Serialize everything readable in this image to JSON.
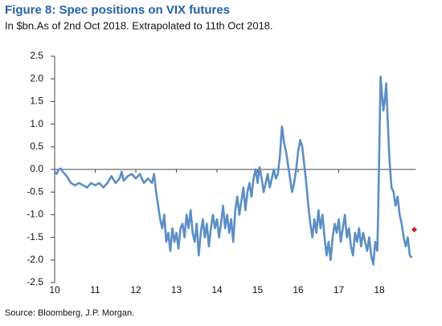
{
  "chart_data": {
    "type": "line",
    "title": "Figure 8: Spec positions on VIX futures",
    "subtitle": "In $bn.As of 2nd Oct 2018. Extrapolated to 11th Oct 2018.",
    "source": "Source:  Bloomberg, J.P. Morgan.",
    "x": [
      10.0,
      10.05,
      10.1,
      10.15,
      10.2,
      10.3,
      10.4,
      10.5,
      10.6,
      10.7,
      10.8,
      10.9,
      11.0,
      11.1,
      11.2,
      11.3,
      11.4,
      11.5,
      11.6,
      11.65,
      11.7,
      11.8,
      11.9,
      12.0,
      12.1,
      12.2,
      12.3,
      12.4,
      12.45,
      12.5,
      12.55,
      12.6,
      12.65,
      12.7,
      12.75,
      12.8,
      12.85,
      12.9,
      12.95,
      13.0,
      13.05,
      13.1,
      13.15,
      13.2,
      13.25,
      13.3,
      13.35,
      13.4,
      13.45,
      13.5,
      13.55,
      13.6,
      13.65,
      13.7,
      13.75,
      13.8,
      13.85,
      13.9,
      13.95,
      14.0,
      14.05,
      14.1,
      14.15,
      14.2,
      14.25,
      14.3,
      14.35,
      14.4,
      14.45,
      14.5,
      14.55,
      14.6,
      14.65,
      14.7,
      14.75,
      14.8,
      14.85,
      14.9,
      14.95,
      15.0,
      15.05,
      15.1,
      15.15,
      15.2,
      15.25,
      15.3,
      15.35,
      15.4,
      15.45,
      15.5,
      15.55,
      15.6,
      15.65,
      15.7,
      15.75,
      15.8,
      15.85,
      15.9,
      15.95,
      16.0,
      16.05,
      16.1,
      16.15,
      16.2,
      16.25,
      16.3,
      16.35,
      16.4,
      16.45,
      16.5,
      16.55,
      16.6,
      16.65,
      16.7,
      16.75,
      16.8,
      16.85,
      16.9,
      16.95,
      17.0,
      17.05,
      17.1,
      17.15,
      17.2,
      17.25,
      17.3,
      17.35,
      17.4,
      17.45,
      17.5,
      17.55,
      17.6,
      17.65,
      17.7,
      17.75,
      17.8,
      17.85,
      17.9,
      17.95,
      17.97,
      18.0,
      18.03,
      18.07,
      18.1,
      18.13,
      18.17,
      18.2,
      18.25,
      18.3,
      18.35,
      18.4,
      18.45,
      18.5,
      18.55,
      18.6,
      18.65,
      18.7,
      18.75,
      18.8
    ],
    "series": [
      {
        "color": "#5b8ec6",
        "values": [
          -0.05,
          -0.1,
          0.0,
          0.02,
          -0.05,
          -0.15,
          -0.3,
          -0.35,
          -0.3,
          -0.35,
          -0.4,
          -0.3,
          -0.35,
          -0.3,
          -0.4,
          -0.3,
          -0.15,
          -0.3,
          -0.2,
          -0.05,
          -0.25,
          -0.15,
          -0.1,
          -0.2,
          -0.1,
          -0.3,
          -0.2,
          -0.3,
          -0.1,
          -0.5,
          -0.8,
          -1.1,
          -1.3,
          -1.0,
          -1.6,
          -1.4,
          -1.8,
          -1.3,
          -1.6,
          -1.4,
          -1.75,
          -1.3,
          -1.2,
          -1.5,
          -1.0,
          -1.3,
          -0.9,
          -1.4,
          -1.6,
          -1.2,
          -1.9,
          -1.4,
          -1.1,
          -1.5,
          -1.2,
          -1.7,
          -1.3,
          -1.0,
          -1.3,
          -1.1,
          -1.5,
          -1.2,
          -0.8,
          -1.3,
          -1.0,
          -1.4,
          -1.1,
          -1.6,
          -0.9,
          -0.6,
          -1.0,
          -0.7,
          -0.4,
          -0.9,
          -0.5,
          -0.3,
          -0.6,
          -0.2,
          0.0,
          -0.3,
          0.05,
          -0.2,
          -0.5,
          -0.3,
          -0.1,
          -0.4,
          -0.2,
          0.0,
          -0.2,
          -0.1,
          0.3,
          0.95,
          0.6,
          0.4,
          0.1,
          -0.2,
          -0.5,
          -0.3,
          0.0,
          0.4,
          0.65,
          0.5,
          0.1,
          -0.3,
          -0.8,
          -1.2,
          -1.5,
          -1.1,
          -1.4,
          -0.9,
          -1.3,
          -1.0,
          -1.5,
          -1.9,
          -1.6,
          -2.0,
          -1.5,
          -1.2,
          -1.4,
          -1.1,
          -1.6,
          -1.3,
          -1.0,
          -1.5,
          -1.3,
          -1.7,
          -1.9,
          -1.4,
          -1.6,
          -1.3,
          -1.7,
          -1.4,
          -1.6,
          -1.8,
          -1.5,
          -1.9,
          -2.1,
          -1.6,
          -1.8,
          -1.0,
          0.5,
          2.05,
          1.6,
          1.3,
          1.5,
          1.9,
          1.2,
          0.2,
          -0.4,
          -0.5,
          -0.8,
          -0.6,
          -1.0,
          -1.2,
          -1.5,
          -1.7,
          -1.5,
          -1.9,
          -1.95
        ]
      }
    ],
    "marker": {
      "x": 18.86,
      "y": -1.33,
      "color": "#d02020"
    },
    "xlim": [
      10,
      18.9
    ],
    "xticks": [
      10,
      11,
      12,
      13,
      14,
      15,
      16,
      17,
      18
    ],
    "ylim": [
      -2.5,
      2.5
    ],
    "yticks": [
      2.5,
      {
        "value": 2,
        "label": "2.0"
      },
      1.5,
      {
        "value": 1,
        "label": "1.0"
      },
      0.5,
      {
        "value": 0,
        "label": "0.0"
      },
      -0.5,
      {
        "value": -1,
        "label": "-1.0"
      },
      -1.5,
      {
        "value": -2,
        "label": "-2.0"
      },
      -2.5
    ],
    "grid": false
  }
}
